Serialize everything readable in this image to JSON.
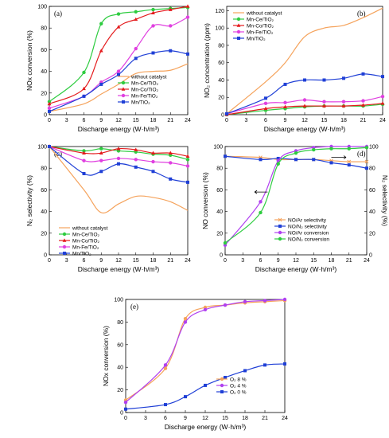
{
  "figure_panels": [
    "(a)",
    "(b)",
    "(c)",
    "(d)",
    "(e)"
  ],
  "chart_data": [
    {
      "type": "line",
      "panel": "(a)",
      "xlabel": "Discharge energy (W·h/m³)",
      "ylabel": "NOx conversion (%)",
      "xlim": [
        0,
        24
      ],
      "ylim": [
        0,
        100
      ],
      "x": [
        0,
        6,
        9,
        12,
        15,
        18,
        21,
        24
      ],
      "xticks": [
        0,
        3,
        6,
        9,
        12,
        15,
        18,
        21,
        24
      ],
      "yticks": [
        0,
        20,
        40,
        60,
        80,
        100
      ],
      "legend_position": "lower-right",
      "series": [
        {
          "name": "without catalyst",
          "color": "#f5a35c",
          "marker": "none",
          "values": [
            3,
            10,
            19,
            28,
            38,
            40,
            41,
            47
          ]
        },
        {
          "name": "Mn-Ce/TiO₂",
          "color": "#2ecc40",
          "marker": "circle",
          "values": [
            12,
            39,
            84,
            93,
            95,
            97,
            98,
            99
          ]
        },
        {
          "name": "Mn-Co/TiO₂",
          "color": "#e41a1c",
          "marker": "triangle",
          "values": [
            10,
            24,
            59,
            81,
            88,
            94,
            97,
            100
          ]
        },
        {
          "name": "Mn-Fe/TiO₂",
          "color": "#e040e0",
          "marker": "circle",
          "values": [
            6,
            17,
            30,
            40,
            61,
            82,
            82,
            90
          ]
        },
        {
          "name": "Mn/TiO₂",
          "color": "#1f3fd6",
          "marker": "square",
          "values": [
            3,
            17,
            28,
            37,
            52,
            57,
            59,
            56
          ]
        }
      ]
    },
    {
      "type": "line",
      "panel": "(b)",
      "xlabel": "Discharge energy (W·h/m³)",
      "ylabel": "NO₂ concentration (ppm)",
      "xlim": [
        0,
        24
      ],
      "ylim": [
        0,
        125
      ],
      "x": [
        0,
        6,
        9,
        12,
        15,
        18,
        21,
        24
      ],
      "xticks": [
        0,
        3,
        6,
        9,
        12,
        15,
        18,
        21,
        24
      ],
      "yticks": [
        0,
        20,
        40,
        60,
        80,
        100,
        120
      ],
      "legend_position": "top-left",
      "series": [
        {
          "name": "without catalyst",
          "color": "#f5a35c",
          "marker": "none",
          "values": [
            1,
            38,
            60,
            90,
            100,
            103,
            112,
            123
          ]
        },
        {
          "name": "Mn-Ce/TiO₂",
          "color": "#2ecc40",
          "marker": "circle",
          "values": [
            0,
            5,
            7,
            9,
            10,
            10,
            10,
            12
          ]
        },
        {
          "name": "Mn-Co/TiO₂",
          "color": "#e41a1c",
          "marker": "triangle",
          "values": [
            0,
            7,
            9,
            10,
            10,
            10,
            11,
            13
          ]
        },
        {
          "name": "Mn-Fe/TiO₂",
          "color": "#e040e0",
          "marker": "circle",
          "values": [
            1,
            13,
            14,
            17,
            15,
            15,
            16,
            21
          ]
        },
        {
          "name": "Mn/TiO₂",
          "color": "#1f3fd6",
          "marker": "square",
          "values": [
            1,
            19,
            35,
            40,
            40,
            42,
            47,
            44
          ]
        }
      ]
    },
    {
      "type": "line",
      "panel": "(c)",
      "xlabel": "Discharge energy (W·h/m³)",
      "ylabel": "N₂ selectivity (%)",
      "xlim": [
        0,
        24
      ],
      "ylim": [
        0,
        100
      ],
      "x": [
        0,
        6,
        9,
        12,
        15,
        18,
        21,
        24
      ],
      "xticks": [
        0,
        3,
        6,
        9,
        12,
        15,
        18,
        21,
        24
      ],
      "yticks": [
        0,
        20,
        40,
        60,
        80,
        100
      ],
      "legend_position": "lower-left",
      "series": [
        {
          "name": "without catalyst",
          "color": "#f5a35c",
          "marker": "none",
          "values": [
            100,
            60,
            39,
            47,
            54,
            53,
            49,
            41
          ]
        },
        {
          "name": "Mn-Ce/TiO₂",
          "color": "#2ecc40",
          "marker": "circle",
          "values": [
            100,
            96,
            98,
            96,
            95,
            93,
            92,
            88
          ]
        },
        {
          "name": "Mn-Co/TiO₂",
          "color": "#e41a1c",
          "marker": "triangle",
          "values": [
            100,
            94,
            94,
            98,
            97,
            94,
            94,
            91
          ]
        },
        {
          "name": "Mn-Fe/TiO₂",
          "color": "#e040e0",
          "marker": "circle",
          "values": [
            100,
            87,
            87,
            89,
            88,
            86,
            85,
            82
          ]
        },
        {
          "name": "Mn/TiO₂",
          "color": "#1f3fd6",
          "marker": "square",
          "values": [
            100,
            75,
            77,
            84,
            81,
            77,
            70,
            67
          ]
        }
      ]
    },
    {
      "type": "line",
      "panel": "(d)",
      "xlabel": "Discharge energy (W·h/m³)",
      "ylabel": "NO conversion (%)",
      "ylabel_right": "N₂ selectivity (%)",
      "xlim": [
        0,
        24
      ],
      "ylim": [
        0,
        100
      ],
      "ylim_right": [
        0,
        100
      ],
      "x": [
        0,
        6,
        9,
        12,
        15,
        18,
        21,
        24
      ],
      "xticks": [
        0,
        3,
        6,
        9,
        12,
        15,
        18,
        21,
        24
      ],
      "yticks": [
        0,
        20,
        40,
        60,
        80,
        100
      ],
      "legend_position": "lower-right",
      "series": [
        {
          "name": "NO/Ar selectivity",
          "color": "#f5a35c",
          "marker": "x",
          "axis": "right",
          "values": [
            91,
            90,
            88,
            88,
            88,
            87,
            86,
            86
          ]
        },
        {
          "name": "NO/N₂ selectivity",
          "color": "#1f3fd6",
          "marker": "square",
          "axis": "right",
          "values": [
            91,
            88,
            89,
            88,
            88,
            85,
            83,
            80
          ]
        },
        {
          "name": "NO/Ar conversion",
          "color": "#b040f0",
          "marker": "circle",
          "axis": "left",
          "values": [
            9,
            49,
            87,
            96,
            99,
            100,
            100,
            100
          ]
        },
        {
          "name": "NO/N₂ conversion",
          "color": "#2ecc40",
          "marker": "circle",
          "axis": "left",
          "values": [
            11,
            39,
            84,
            94,
            97,
            98,
            98,
            99
          ]
        }
      ]
    },
    {
      "type": "line",
      "panel": "(e)",
      "xlabel": "Discharge energy (W·h/m³)",
      "ylabel": "NOx conversion (%)",
      "xlim": [
        0,
        24
      ],
      "ylim": [
        0,
        100
      ],
      "x": [
        0,
        6,
        9,
        12,
        15,
        18,
        21,
        24
      ],
      "xticks": [
        0,
        3,
        6,
        9,
        12,
        15,
        18,
        21,
        24
      ],
      "yticks": [
        0,
        20,
        40,
        60,
        80,
        100
      ],
      "legend_position": "lower-right",
      "series": [
        {
          "name": "O₂ 8 %",
          "color": "#f5a35c",
          "marker": "circle",
          "values": [
            11,
            39,
            83,
            93,
            95,
            97,
            98,
            99
          ]
        },
        {
          "name": "O₂ 4 %",
          "color": "#b040f0",
          "marker": "circle",
          "values": [
            9,
            42,
            80,
            91,
            95,
            98,
            99,
            100
          ]
        },
        {
          "name": "O₂ 0 %",
          "color": "#1f3fd6",
          "marker": "square",
          "values": [
            3,
            7,
            14,
            24,
            31,
            37,
            42,
            43
          ]
        }
      ]
    }
  ]
}
